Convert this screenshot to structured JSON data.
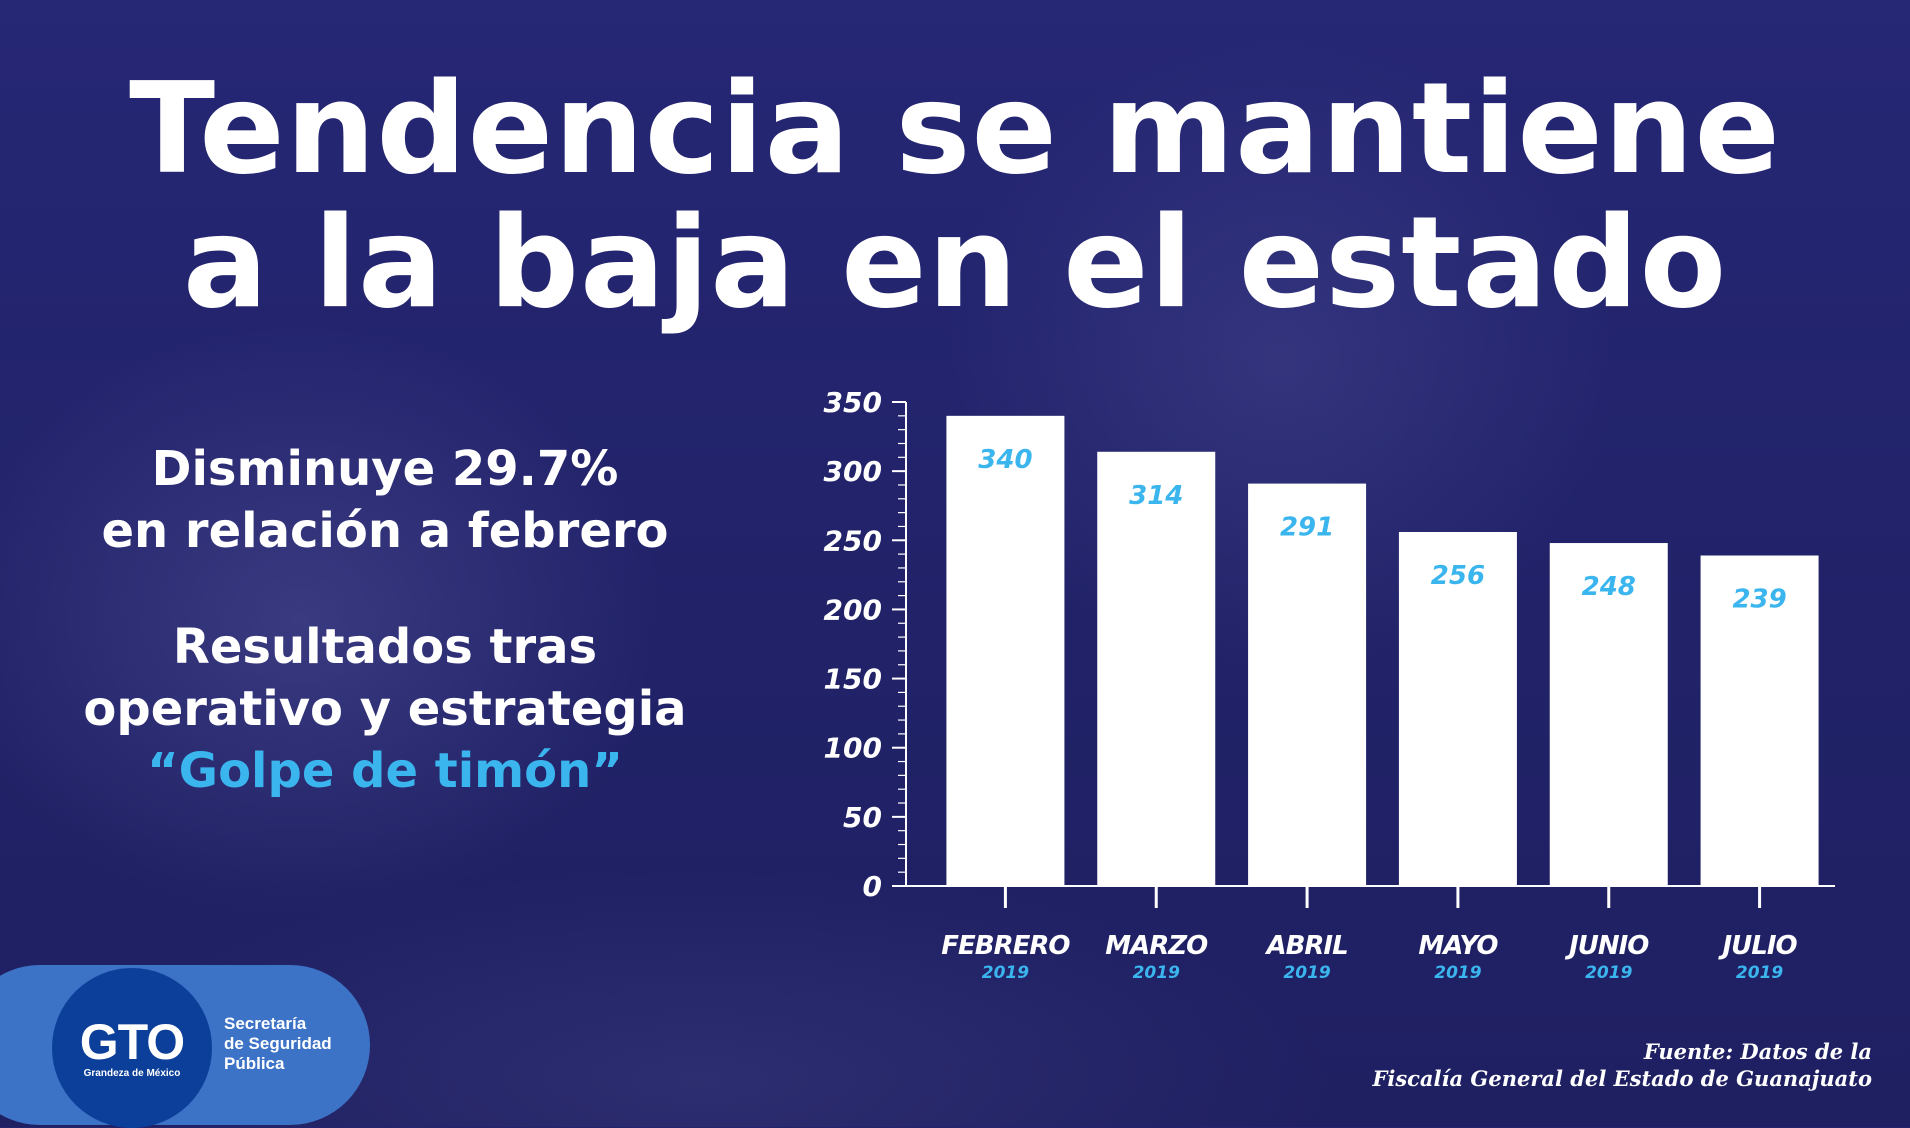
{
  "title": {
    "line1": "Tendencia se mantiene",
    "line2": "a la baja en el estado"
  },
  "left_text": {
    "line1": "Disminuye 29.7%",
    "line2": "en relación a febrero",
    "line3": "Resultados tras",
    "line4": "operativo y estrategia",
    "line5_highlight": "“Golpe de timón”"
  },
  "chart_data": {
    "type": "bar",
    "categories": [
      "FEBRERO",
      "MARZO",
      "ABRIL",
      "MAYO",
      "JUNIO",
      "JULIO"
    ],
    "category_sublabel": "2019",
    "values": [
      340,
      314,
      291,
      256,
      248,
      239
    ],
    "ylim": [
      0,
      350
    ],
    "yticks": [
      0,
      50,
      100,
      150,
      200,
      250,
      300,
      350
    ],
    "title": "",
    "xlabel": "",
    "ylabel": "",
    "grid": false,
    "colors": {
      "bar": "#ffffff",
      "value_label": "#3bb5ee",
      "sublabel": "#3bb5ee",
      "axis": "#ffffff"
    }
  },
  "source": {
    "line1": "Fuente: Datos de la",
    "line2": "Fiscalía General del Estado de Guanajuato"
  },
  "logo": {
    "brand": "GTO",
    "tagline": "Grandeza de México",
    "org_line1": "Secretaría",
    "org_line2": "de Seguridad",
    "org_line3": "Pública"
  },
  "colors": {
    "background": "#23246e",
    "accent": "#3bb5ee",
    "logo_pill": "#3d73c6",
    "logo_circle": "#0c3f9a"
  }
}
